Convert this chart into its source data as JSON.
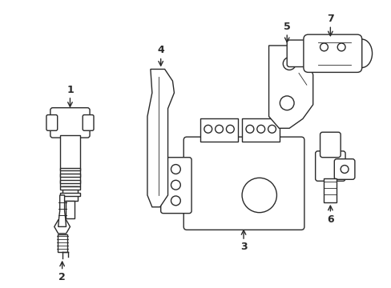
{
  "background_color": "#ffffff",
  "line_color": "#2a2a2a",
  "line_width": 1.0,
  "figsize": [
    4.89,
    3.6
  ],
  "dpi": 100
}
